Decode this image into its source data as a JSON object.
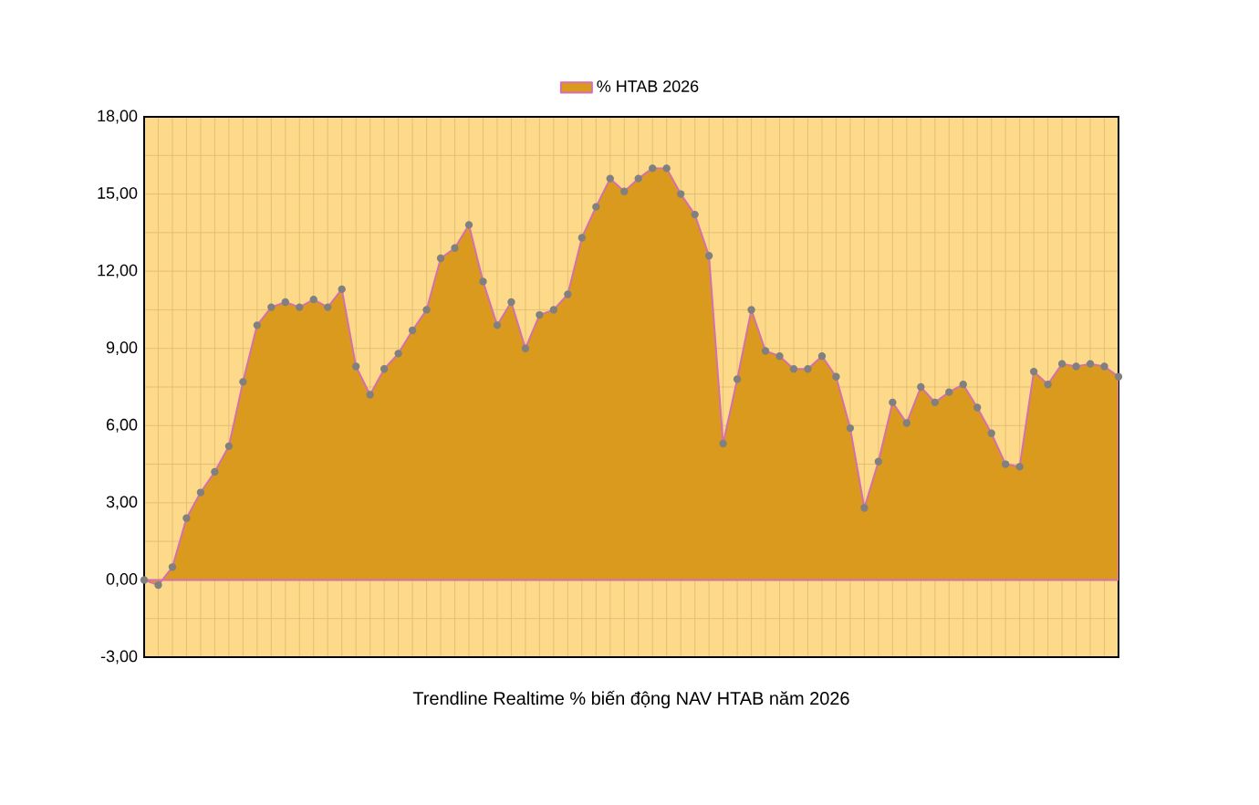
{
  "chart_data": {
    "type": "area",
    "xlabel": "Trendline Realtime % biến động NAV HTAB năm 2026",
    "categories": [
      null,
      null,
      null,
      null,
      null,
      null,
      null,
      null,
      null,
      null,
      null,
      null,
      null,
      null,
      null,
      null,
      null,
      null,
      null,
      null,
      null,
      null,
      null,
      null,
      null,
      null,
      null,
      null,
      null,
      null,
      null,
      null,
      null,
      null,
      null,
      null,
      null,
      null,
      null,
      null,
      null,
      null,
      null,
      null,
      null,
      null,
      null,
      null,
      null,
      null,
      null,
      null,
      null,
      null,
      null,
      null,
      null,
      null,
      null,
      null,
      null,
      null,
      null,
      null,
      null,
      null,
      null,
      null,
      null,
      null
    ],
    "series": [
      {
        "name": "% HTAB 2026",
        "color": "#d99a1e",
        "values": [
          0.0,
          -0.2,
          0.5,
          2.4,
          3.4,
          4.2,
          5.2,
          7.7,
          9.9,
          10.6,
          10.8,
          10.6,
          10.9,
          10.6,
          11.3,
          8.3,
          7.2,
          8.2,
          8.8,
          9.7,
          10.5,
          12.5,
          12.9,
          13.8,
          11.6,
          9.9,
          10.8,
          9.0,
          10.3,
          10.5,
          11.1,
          13.3,
          14.5,
          15.6,
          15.1,
          15.6,
          16.0,
          16.0,
          15.0,
          14.2,
          12.6,
          5.3,
          7.8,
          10.5,
          8.9,
          8.7,
          8.2,
          8.2,
          8.7,
          7.9,
          5.9,
          2.8,
          4.6,
          6.9,
          6.1,
          7.5,
          6.9,
          7.3,
          7.6,
          6.7,
          5.7,
          4.5,
          4.4,
          8.1,
          7.6,
          8.4,
          8.3,
          8.4,
          8.3,
          7.9
        ]
      }
    ],
    "ylim": [
      -3,
      18
    ],
    "yticks": [
      {
        "value": -3,
        "label": "-3,00"
      },
      {
        "value": -1.5,
        "label": null
      },
      {
        "value": 0,
        "label": "0,00"
      },
      {
        "value": 1.5,
        "label": null
      },
      {
        "value": 3,
        "label": "3,00"
      },
      {
        "value": 4.5,
        "label": null
      },
      {
        "value": 6,
        "label": "6,00"
      },
      {
        "value": 7.5,
        "label": null
      },
      {
        "value": 9,
        "label": "9,00"
      },
      {
        "value": 10.5,
        "label": null
      },
      {
        "value": 12,
        "label": "12,00"
      },
      {
        "value": 13.5,
        "label": null
      },
      {
        "value": 15,
        "label": "15,00"
      },
      {
        "value": 16.5,
        "label": null
      },
      {
        "value": 18,
        "label": "18,00"
      }
    ],
    "grid": true,
    "legend": "top",
    "marker": "circle"
  }
}
